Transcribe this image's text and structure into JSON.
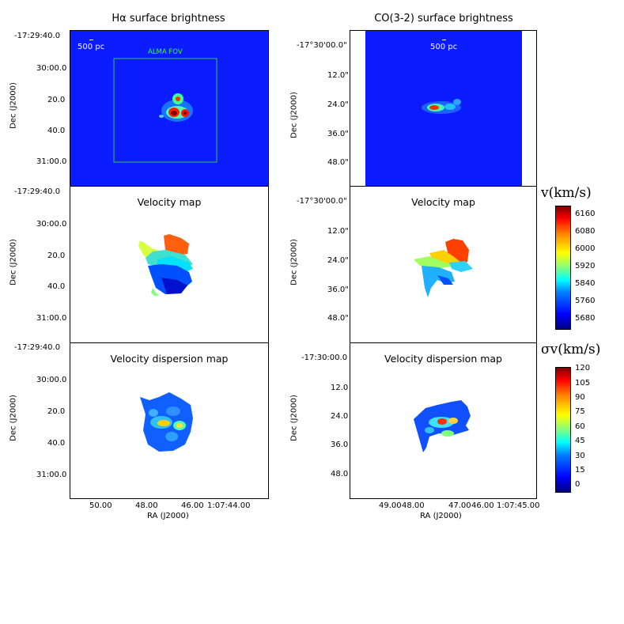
{
  "chart_data": [
    {
      "type": "heatmap",
      "title": "Hα surface brightness",
      "ylabel": "Dec (J2000)",
      "yticks": [
        "-17:29:40.0",
        "30:00.0",
        "20.0",
        "40.0",
        "31:00.0"
      ],
      "annotations": [
        "500 pc",
        "ALMA FOV"
      ]
    },
    {
      "type": "heatmap",
      "title": "CO(3-2) surface brightness",
      "ylabel": "Dec (J2000)",
      "yticks": [
        "-17°30'00.0\"",
        "12.0\"",
        "24.0\"",
        "36.0\"",
        "48.0\""
      ],
      "annotations": [
        "500 pc"
      ]
    },
    {
      "type": "heatmap",
      "title": "Velocity map",
      "ylabel": "Dec (J2000)",
      "yticks": [
        "-17:29:40.0",
        "30:00.0",
        "20.0",
        "40.0",
        "31:00.0"
      ]
    },
    {
      "type": "heatmap",
      "title": "Velocity map",
      "ylabel": "Dec (J2000)",
      "yticks": [
        "-17°30'00.0\"",
        "12.0\"",
        "24.0\"",
        "36.0\"",
        "48.0\""
      ],
      "colorbar": {
        "label": "v(km/s)",
        "ticks": [
          6160,
          6080,
          6000,
          5920,
          5840,
          5760,
          5680
        ],
        "range": [
          5630,
          6200
        ]
      }
    },
    {
      "type": "heatmap",
      "title": "Velocity dispersion map",
      "xlabel": "RA (J2000)",
      "ylabel": "Dec (J2000)",
      "xticks": [
        "50.00",
        "48.00",
        "46.00",
        "1:07:44.00"
      ],
      "yticks": [
        "-17:29:40.0",
        "30:00.0",
        "20.0",
        "40.0",
        "31:00.0"
      ]
    },
    {
      "type": "heatmap",
      "title": "Velocity dispersion map",
      "xlabel": "RA (J2000)",
      "ylabel": "Dec (J2000)",
      "xticks": [
        "49.00",
        "48.00",
        "47.00",
        "46.00",
        "1:07:45.00"
      ],
      "yticks": [
        "-17:30:00.0",
        "12.0",
        "24.0",
        "36.0",
        "48.0"
      ],
      "colorbar": {
        "label": "σv(km/s)",
        "ticks": [
          120,
          105,
          90,
          75,
          60,
          45,
          30,
          15,
          0
        ],
        "range": [
          -8,
          122
        ]
      }
    }
  ]
}
